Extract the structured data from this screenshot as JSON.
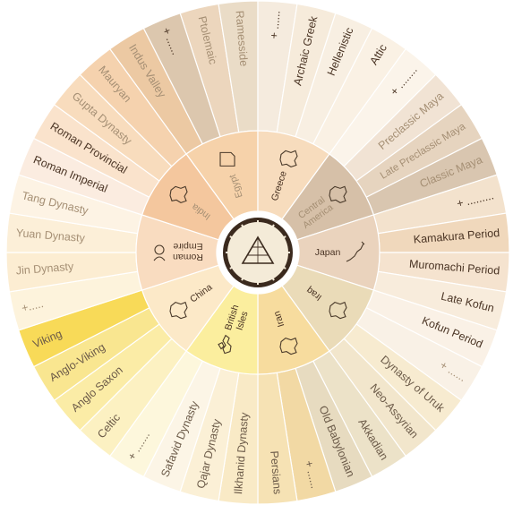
{
  "colors": {
    "text_dark": "#4a3424",
    "text_mid": "#6b5a48",
    "text_light": "#a58f74",
    "hub_ring": "#3b2a1e",
    "hub_face": "#f4ebd8"
  },
  "center": {
    "icon": "pyramid-clock-icon"
  },
  "regions": [
    {
      "name": "Egypt",
      "icon": "egypt-map-icon",
      "color": "#f6d2aa",
      "text": "light"
    },
    {
      "name": "Greece",
      "icon": "greece-map-icon",
      "color": "#f7dcbd",
      "text": "dark"
    },
    {
      "name": "Central\nAmerica",
      "icon": "central-america-map-icon",
      "color": "#d6c0a8",
      "text": "light"
    },
    {
      "name": "Japan",
      "icon": "japan-map-icon",
      "color": "#ead3bd",
      "text": "dark"
    },
    {
      "name": "Iraq",
      "icon": "iraq-map-icon",
      "color": "#eadbb8",
      "text": "dark"
    },
    {
      "name": "Iran",
      "icon": "iran-map-icon",
      "color": "#f7dc9e",
      "text": "dark"
    },
    {
      "name": "British\nIsles",
      "icon": "british-isles-map-icon",
      "color": "#fbee9e",
      "text": "dark"
    },
    {
      "name": "China",
      "icon": "china-map-icon",
      "color": "#fce9c8",
      "text": "dark"
    },
    {
      "name": "Roman\nEmpire",
      "icon": "roman-helmet-icon",
      "color": "#f9dcc0",
      "text": "dark"
    },
    {
      "name": "India",
      "icon": "india-map-icon",
      "color": "#f4c79e",
      "text": "light"
    }
  ],
  "eras": [
    {
      "label": "Ptolemaic",
      "color": "#ecd6bd",
      "text": "light"
    },
    {
      "label": "Ramesside",
      "color": "#eadcc7",
      "text": "light"
    },
    {
      "label": "+ ......",
      "color": "#f5ebde",
      "text": "dark"
    },
    {
      "label": "Archaic Greek",
      "color": "#f6ebdb",
      "text": "dark"
    },
    {
      "label": "Hellenistic",
      "color": "#f8efe2",
      "text": "dark"
    },
    {
      "label": "Attic",
      "color": "#faf1e4",
      "text": "dark"
    },
    {
      "label": "+ ........",
      "color": "#fbf4ea",
      "text": "dark"
    },
    {
      "label": "Preclassic Maya",
      "color": "#f1e3d4",
      "text": "light"
    },
    {
      "label": "Late Preclassic Maya",
      "color": "#e6d4bf",
      "text": "light"
    },
    {
      "label": "Classic Maya",
      "color": "#d9c6b0",
      "text": "light"
    },
    {
      "label": "+ .........",
      "color": "#f3e2cd",
      "text": "dark"
    },
    {
      "label": "Kamakura Period",
      "color": "#f0d8bc",
      "text": "dark"
    },
    {
      "label": "Muromachi Period",
      "color": "#f5e3cf",
      "text": "dark"
    },
    {
      "label": "Late Kofun",
      "color": "#f8ecdc",
      "text": "dark"
    },
    {
      "label": "Kofun Period",
      "color": "#faf1e6",
      "text": "dark"
    },
    {
      "label": "+ ......",
      "color": "#f9f1e6",
      "text": "light"
    },
    {
      "label": "Dynasty of Uruk",
      "color": "#f7ebd0",
      "text": "mid"
    },
    {
      "label": "Neo-Assyrian",
      "color": "#f2e6cc",
      "text": "mid"
    },
    {
      "label": "Akkadian",
      "color": "#ece2c8",
      "text": "mid"
    },
    {
      "label": "Old Babylonian",
      "color": "#e7dbc0",
      "text": "mid"
    },
    {
      "label": "+ ......",
      "color": "#f2d9a4",
      "text": "mid"
    },
    {
      "label": "Persians",
      "color": "#f6e2b4",
      "text": "mid"
    },
    {
      "label": "Ilkhanid Dynasty",
      "color": "#f9eac6",
      "text": "mid"
    },
    {
      "label": "Qajar Dynasty",
      "color": "#fbf0d6",
      "text": "mid"
    },
    {
      "label": "Safavid Dynasty",
      "color": "#fcf5e6",
      "text": "mid"
    },
    {
      "label": "+ .......",
      "color": "#fdf7dc",
      "text": "mid"
    },
    {
      "label": "Celtic",
      "color": "#fcf1c2",
      "text": "mid"
    },
    {
      "label": "Anglo Saxon",
      "color": "#fbeca6",
      "text": "mid"
    },
    {
      "label": "Anglo-Viking",
      "color": "#f9e690",
      "text": "mid"
    },
    {
      "label": "Viking",
      "color": "#f8da58",
      "text": "mid"
    },
    {
      "label": "+.....",
      "color": "#fdf3dc",
      "text": "light"
    },
    {
      "label": "Jin Dynasty",
      "color": "#fcedd2",
      "text": "light"
    },
    {
      "label": "Yuan Dynasty",
      "color": "#fcefd8",
      "text": "light"
    },
    {
      "label": "Tang Dynasty",
      "color": "#fdf3e4",
      "text": "light"
    },
    {
      "label": "Roman Imperial",
      "color": "#fbece0",
      "text": "dark"
    },
    {
      "label": "Roman Provincial",
      "color": "#fae3cc",
      "text": "dark"
    },
    {
      "label": "Gupta Dynasty",
      "color": "#f8dcbd",
      "text": "light"
    },
    {
      "label": "Mauryan",
      "color": "#f5d2ae",
      "text": "light"
    },
    {
      "label": "Indus Valley",
      "color": "#ecc9a3",
      "text": "light"
    },
    {
      "label": "+ ......",
      "color": "#dcc7ae",
      "text": "dark"
    }
  ]
}
